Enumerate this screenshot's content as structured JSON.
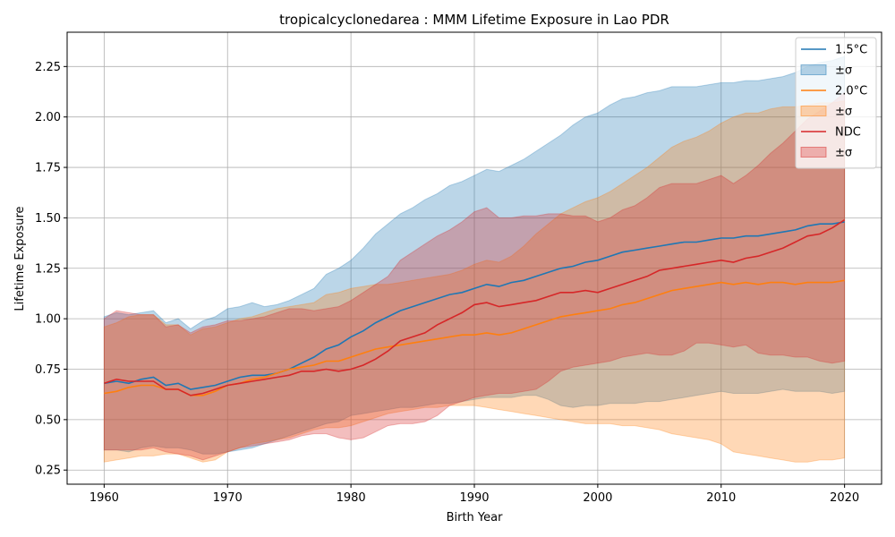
{
  "chart_data": {
    "type": "line",
    "title": "tropicalcyclonedarea : MMM Lifetime Exposure in Lao PDR",
    "xlabel": "Birth Year",
    "ylabel": "Lifetime Exposure",
    "xlim": [
      1957,
      2023
    ],
    "ylim": [
      0.18,
      2.42
    ],
    "xticks": [
      1960,
      1970,
      1980,
      1990,
      2000,
      2010,
      2020
    ],
    "yticks": [
      0.25,
      0.5,
      0.75,
      1.0,
      1.25,
      1.5,
      1.75,
      2.0,
      2.25
    ],
    "grid": true,
    "legend_position": "top-right",
    "x": [
      1960,
      1961,
      1962,
      1963,
      1964,
      1965,
      1966,
      1967,
      1968,
      1969,
      1970,
      1971,
      1972,
      1973,
      1974,
      1975,
      1976,
      1977,
      1978,
      1979,
      1980,
      1981,
      1982,
      1983,
      1984,
      1985,
      1986,
      1987,
      1988,
      1989,
      1990,
      1991,
      1992,
      1993,
      1994,
      1995,
      1996,
      1997,
      1998,
      1999,
      2000,
      2001,
      2002,
      2003,
      2004,
      2005,
      2006,
      2007,
      2008,
      2009,
      2010,
      2011,
      2012,
      2013,
      2014,
      2015,
      2016,
      2017,
      2018,
      2019,
      2020
    ],
    "series": [
      {
        "name": "1.5°C",
        "band_label": "±σ",
        "color": "#1f77b4",
        "band_color": "#1f77b4",
        "band_opacity": 0.3,
        "mean": [
          0.68,
          0.69,
          0.68,
          0.7,
          0.71,
          0.67,
          0.68,
          0.65,
          0.66,
          0.67,
          0.69,
          0.71,
          0.72,
          0.72,
          0.73,
          0.75,
          0.78,
          0.81,
          0.85,
          0.87,
          0.91,
          0.94,
          0.98,
          1.01,
          1.04,
          1.06,
          1.08,
          1.1,
          1.12,
          1.13,
          1.15,
          1.17,
          1.16,
          1.18,
          1.19,
          1.21,
          1.23,
          1.25,
          1.26,
          1.28,
          1.29,
          1.31,
          1.33,
          1.34,
          1.35,
          1.36,
          1.37,
          1.38,
          1.38,
          1.39,
          1.4,
          1.4,
          1.41,
          1.41,
          1.42,
          1.43,
          1.44,
          1.46,
          1.47,
          1.47,
          1.48
        ],
        "upper": [
          1.01,
          1.03,
          1.02,
          1.03,
          1.04,
          0.98,
          1.0,
          0.95,
          0.99,
          1.01,
          1.05,
          1.06,
          1.08,
          1.06,
          1.07,
          1.09,
          1.12,
          1.15,
          1.22,
          1.25,
          1.29,
          1.35,
          1.42,
          1.47,
          1.52,
          1.55,
          1.59,
          1.62,
          1.66,
          1.68,
          1.71,
          1.74,
          1.73,
          1.76,
          1.79,
          1.83,
          1.87,
          1.91,
          1.96,
          2.0,
          2.02,
          2.06,
          2.09,
          2.1,
          2.12,
          2.13,
          2.15,
          2.15,
          2.15,
          2.16,
          2.17,
          2.17,
          2.18,
          2.18,
          2.19,
          2.2,
          2.22,
          2.25,
          2.27,
          2.28,
          2.3
        ],
        "lower": [
          0.35,
          0.35,
          0.34,
          0.36,
          0.37,
          0.36,
          0.36,
          0.35,
          0.33,
          0.33,
          0.34,
          0.35,
          0.36,
          0.38,
          0.4,
          0.42,
          0.44,
          0.46,
          0.48,
          0.49,
          0.52,
          0.53,
          0.54,
          0.55,
          0.56,
          0.56,
          0.57,
          0.58,
          0.58,
          0.59,
          0.6,
          0.61,
          0.61,
          0.61,
          0.62,
          0.62,
          0.6,
          0.57,
          0.56,
          0.57,
          0.57,
          0.58,
          0.58,
          0.58,
          0.59,
          0.59,
          0.6,
          0.61,
          0.62,
          0.63,
          0.64,
          0.63,
          0.63,
          0.63,
          0.64,
          0.65,
          0.64,
          0.64,
          0.64,
          0.63,
          0.64
        ]
      },
      {
        "name": "2.0°C",
        "band_label": "±σ",
        "color": "#ff7f0e",
        "band_color": "#ff7f0e",
        "band_opacity": 0.3,
        "mean": [
          0.63,
          0.64,
          0.66,
          0.67,
          0.67,
          0.65,
          0.65,
          0.62,
          0.62,
          0.64,
          0.67,
          0.68,
          0.7,
          0.71,
          0.73,
          0.75,
          0.76,
          0.77,
          0.79,
          0.79,
          0.81,
          0.83,
          0.85,
          0.86,
          0.87,
          0.88,
          0.89,
          0.9,
          0.91,
          0.92,
          0.92,
          0.93,
          0.92,
          0.93,
          0.95,
          0.97,
          0.99,
          1.01,
          1.02,
          1.03,
          1.04,
          1.05,
          1.07,
          1.08,
          1.1,
          1.12,
          1.14,
          1.15,
          1.16,
          1.17,
          1.18,
          1.17,
          1.18,
          1.17,
          1.18,
          1.18,
          1.17,
          1.18,
          1.18,
          1.18,
          1.19
        ],
        "upper": [
          0.96,
          0.98,
          1.01,
          1.02,
          1.02,
          0.97,
          0.97,
          0.92,
          0.95,
          0.96,
          0.98,
          1.0,
          1.01,
          1.03,
          1.05,
          1.06,
          1.07,
          1.08,
          1.12,
          1.13,
          1.15,
          1.16,
          1.17,
          1.17,
          1.18,
          1.19,
          1.2,
          1.21,
          1.22,
          1.24,
          1.27,
          1.29,
          1.28,
          1.31,
          1.36,
          1.42,
          1.47,
          1.52,
          1.55,
          1.58,
          1.6,
          1.63,
          1.67,
          1.71,
          1.75,
          1.8,
          1.85,
          1.88,
          1.9,
          1.93,
          1.97,
          2.0,
          2.02,
          2.02,
          2.04,
          2.05,
          2.05,
          2.06,
          2.07,
          2.07,
          2.08
        ],
        "lower": [
          0.29,
          0.3,
          0.31,
          0.32,
          0.32,
          0.33,
          0.33,
          0.31,
          0.29,
          0.3,
          0.34,
          0.36,
          0.38,
          0.39,
          0.4,
          0.41,
          0.43,
          0.45,
          0.46,
          0.46,
          0.47,
          0.49,
          0.51,
          0.53,
          0.54,
          0.55,
          0.56,
          0.56,
          0.57,
          0.57,
          0.57,
          0.56,
          0.55,
          0.54,
          0.53,
          0.52,
          0.51,
          0.5,
          0.49,
          0.48,
          0.48,
          0.48,
          0.47,
          0.47,
          0.46,
          0.45,
          0.43,
          0.42,
          0.41,
          0.4,
          0.38,
          0.34,
          0.33,
          0.32,
          0.31,
          0.3,
          0.29,
          0.29,
          0.3,
          0.3,
          0.31
        ]
      },
      {
        "name": "NDC",
        "band_label": "±σ",
        "color": "#d62728",
        "band_color": "#d62728",
        "band_opacity": 0.3,
        "mean": [
          0.68,
          0.7,
          0.69,
          0.69,
          0.69,
          0.65,
          0.65,
          0.62,
          0.63,
          0.65,
          0.67,
          0.68,
          0.69,
          0.7,
          0.71,
          0.72,
          0.74,
          0.74,
          0.75,
          0.74,
          0.75,
          0.77,
          0.8,
          0.84,
          0.89,
          0.91,
          0.93,
          0.97,
          1.0,
          1.03,
          1.07,
          1.08,
          1.06,
          1.07,
          1.08,
          1.09,
          1.11,
          1.13,
          1.13,
          1.14,
          1.13,
          1.15,
          1.17,
          1.19,
          1.21,
          1.24,
          1.25,
          1.26,
          1.27,
          1.28,
          1.29,
          1.28,
          1.3,
          1.31,
          1.33,
          1.35,
          1.38,
          1.41,
          1.42,
          1.45,
          1.49
        ],
        "upper": [
          1.0,
          1.04,
          1.03,
          1.02,
          1.02,
          0.96,
          0.97,
          0.93,
          0.96,
          0.97,
          0.99,
          0.99,
          1.0,
          1.01,
          1.03,
          1.05,
          1.05,
          1.04,
          1.05,
          1.06,
          1.09,
          1.13,
          1.17,
          1.21,
          1.29,
          1.33,
          1.37,
          1.41,
          1.44,
          1.48,
          1.53,
          1.55,
          1.5,
          1.5,
          1.51,
          1.51,
          1.52,
          1.52,
          1.51,
          1.51,
          1.48,
          1.5,
          1.54,
          1.56,
          1.6,
          1.65,
          1.67,
          1.67,
          1.67,
          1.69,
          1.71,
          1.67,
          1.71,
          1.76,
          1.82,
          1.87,
          1.93,
          1.99,
          2.03,
          2.07,
          2.12
        ],
        "lower": [
          0.35,
          0.35,
          0.35,
          0.35,
          0.36,
          0.34,
          0.33,
          0.32,
          0.3,
          0.32,
          0.34,
          0.36,
          0.37,
          0.38,
          0.39,
          0.4,
          0.42,
          0.43,
          0.43,
          0.41,
          0.4,
          0.41,
          0.44,
          0.47,
          0.48,
          0.48,
          0.49,
          0.52,
          0.57,
          0.59,
          0.61,
          0.62,
          0.63,
          0.63,
          0.64,
          0.65,
          0.69,
          0.74,
          0.76,
          0.77,
          0.78,
          0.79,
          0.81,
          0.82,
          0.83,
          0.82,
          0.82,
          0.84,
          0.88,
          0.88,
          0.87,
          0.86,
          0.87,
          0.83,
          0.82,
          0.82,
          0.81,
          0.81,
          0.79,
          0.78,
          0.79
        ]
      }
    ]
  }
}
